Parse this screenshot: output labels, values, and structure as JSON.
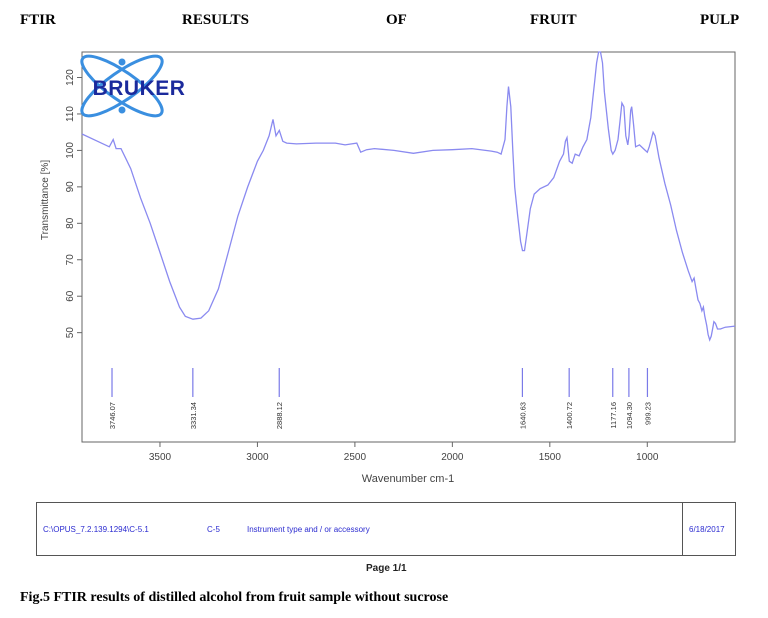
{
  "header": {
    "words": [
      "FTIR",
      "RESULTS",
      "OF",
      "FRUIT",
      "PULP"
    ]
  },
  "logo": {
    "text": "BRUKER"
  },
  "chart_data": {
    "type": "line",
    "title": "",
    "xlabel": "Wavenumber cm-1",
    "ylabel": "Transmittance [%]",
    "xlim": [
      3900,
      550
    ],
    "ylim": [
      20,
      127
    ],
    "x_ticks": [
      3500,
      3000,
      2500,
      2000,
      1500,
      1000
    ],
    "y_ticks": [
      50,
      60,
      70,
      80,
      90,
      100,
      110,
      120
    ],
    "grid": false,
    "line_color": "#8a8af0",
    "series": [
      {
        "points": [
          [
            3900,
            104.5
          ],
          [
            3820,
            102.5
          ],
          [
            3760,
            101.0
          ],
          [
            3740,
            103.0
          ],
          [
            3725,
            100.5
          ],
          [
            3700,
            100.5
          ],
          [
            3650,
            95
          ],
          [
            3600,
            87
          ],
          [
            3550,
            80
          ],
          [
            3500,
            72
          ],
          [
            3450,
            64
          ],
          [
            3400,
            57
          ],
          [
            3370,
            54.5
          ],
          [
            3331,
            53.7
          ],
          [
            3290,
            54.0
          ],
          [
            3250,
            56
          ],
          [
            3200,
            62
          ],
          [
            3150,
            72
          ],
          [
            3100,
            82
          ],
          [
            3050,
            90
          ],
          [
            3000,
            97
          ],
          [
            2970,
            100
          ],
          [
            2940,
            104
          ],
          [
            2920,
            108.5
          ],
          [
            2905,
            104
          ],
          [
            2888,
            105.5
          ],
          [
            2870,
            102.5
          ],
          [
            2850,
            102
          ],
          [
            2800,
            101.8
          ],
          [
            2700,
            102
          ],
          [
            2600,
            102
          ],
          [
            2550,
            101.5
          ],
          [
            2490,
            102
          ],
          [
            2470,
            99.5
          ],
          [
            2440,
            100.2
          ],
          [
            2400,
            100.5
          ],
          [
            2300,
            100
          ],
          [
            2200,
            99.2
          ],
          [
            2100,
            100
          ],
          [
            2000,
            100.2
          ],
          [
            1900,
            100.5
          ],
          [
            1800,
            99.8
          ],
          [
            1770,
            99.5
          ],
          [
            1750,
            99
          ],
          [
            1730,
            103
          ],
          [
            1720,
            112
          ],
          [
            1712,
            117.5
          ],
          [
            1700,
            112
          ],
          [
            1690,
            100
          ],
          [
            1680,
            90
          ],
          [
            1665,
            82
          ],
          [
            1650,
            75
          ],
          [
            1640,
            72.5
          ],
          [
            1630,
            72.5
          ],
          [
            1618,
            77
          ],
          [
            1600,
            84
          ],
          [
            1580,
            88
          ],
          [
            1550,
            89.5
          ],
          [
            1510,
            90.5
          ],
          [
            1480,
            92.5
          ],
          [
            1450,
            97
          ],
          [
            1430,
            99
          ],
          [
            1420,
            102.5
          ],
          [
            1412,
            103.5
          ],
          [
            1400,
            97
          ],
          [
            1385,
            96.5
          ],
          [
            1370,
            99
          ],
          [
            1350,
            98.5
          ],
          [
            1330,
            101
          ],
          [
            1310,
            103
          ],
          [
            1300,
            106
          ],
          [
            1290,
            109
          ],
          [
            1280,
            114
          ],
          [
            1270,
            119
          ],
          [
            1260,
            124
          ],
          [
            1250,
            127
          ],
          [
            1240,
            127.5
          ],
          [
            1230,
            124
          ],
          [
            1220,
            116
          ],
          [
            1200,
            106
          ],
          [
            1185,
            100
          ],
          [
            1177,
            99
          ],
          [
            1165,
            100
          ],
          [
            1150,
            103
          ],
          [
            1140,
            108
          ],
          [
            1130,
            113
          ],
          [
            1120,
            112
          ],
          [
            1110,
            104
          ],
          [
            1100,
            101.5
          ],
          [
            1094,
            104
          ],
          [
            1085,
            111
          ],
          [
            1080,
            112
          ],
          [
            1070,
            107
          ],
          [
            1060,
            101
          ],
          [
            1040,
            101.5
          ],
          [
            1020,
            100.5
          ],
          [
            1000,
            99.5
          ],
          [
            990,
            101
          ],
          [
            980,
            103
          ],
          [
            970,
            105
          ],
          [
            960,
            104
          ],
          [
            940,
            98
          ],
          [
            910,
            91
          ],
          [
            880,
            85
          ],
          [
            850,
            78
          ],
          [
            820,
            72
          ],
          [
            790,
            67
          ],
          [
            770,
            64
          ],
          [
            760,
            65
          ],
          [
            750,
            62
          ],
          [
            740,
            59
          ],
          [
            730,
            58
          ],
          [
            720,
            56
          ],
          [
            712,
            57
          ],
          [
            705,
            54.5
          ],
          [
            695,
            52
          ],
          [
            688,
            49.5
          ],
          [
            680,
            48
          ],
          [
            672,
            49
          ],
          [
            665,
            51
          ],
          [
            658,
            53
          ],
          [
            650,
            52.5
          ],
          [
            640,
            51
          ],
          [
            625,
            51
          ],
          [
            600,
            51.5
          ],
          [
            550,
            51.8
          ]
        ]
      }
    ],
    "peaks": [
      {
        "x": 3746.07,
        "label": "3746.07"
      },
      {
        "x": 3331.34,
        "label": "3331.34"
      },
      {
        "x": 2888.12,
        "label": "2888.12"
      },
      {
        "x": 1640.63,
        "label": "1640.63"
      },
      {
        "x": 1400.72,
        "label": "1400.72"
      },
      {
        "x": 1177.16,
        "label": "1177.16"
      },
      {
        "x": 1094.3,
        "label": "1094.30"
      },
      {
        "x": 999.23,
        "label": "999.23"
      }
    ]
  },
  "footer": {
    "path": "C:\\OPUS_7.2.139.1294\\C-5.1",
    "sample": "C-5",
    "instrument": "Instrument type and / or accessory",
    "date": "6/18/2017"
  },
  "page_label": "Page 1/1",
  "caption": "Fig.5 FTIR results of distilled alcohol from fruit sample without sucrose"
}
